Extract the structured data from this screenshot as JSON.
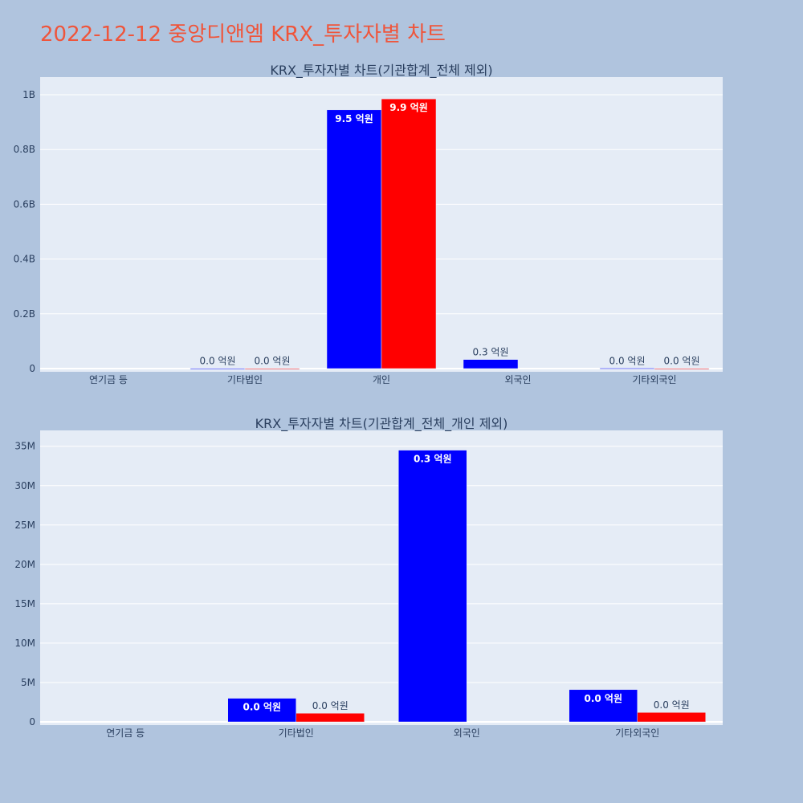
{
  "title": "2022-12-12 중앙디앤엠 KRX_투자자별 차트",
  "chart_data": [
    {
      "type": "bar",
      "title": "KRX_투자자별 차트(기관합계_전체 제외)",
      "categories": [
        "연기금 등",
        "기타법인",
        "개인",
        "외국인",
        "기타외국인"
      ],
      "ylim": [
        0,
        1050000000
      ],
      "yticks": [
        {
          "value": 0,
          "label": "0"
        },
        {
          "value": 200000000,
          "label": "0.2B"
        },
        {
          "value": 400000000,
          "label": "0.4B"
        },
        {
          "value": 600000000,
          "label": "0.6B"
        },
        {
          "value": 800000000,
          "label": "0.8B"
        },
        {
          "value": 1000000000,
          "label": "1B"
        }
      ],
      "grid": true,
      "series": [
        {
          "color": "#0000ff",
          "values": [
            0,
            1000000,
            945000000,
            33000000,
            1500000
          ],
          "labels": [
            "",
            "0.0 억원",
            "9.5 억원",
            "0.3 억원",
            "0.0 억원"
          ]
        },
        {
          "color": "#ff0000",
          "values": [
            0,
            800000,
            985000000,
            0,
            800000
          ],
          "labels": [
            "",
            "0.0 억원",
            "9.9 억원",
            "",
            "0.0 억원"
          ]
        }
      ]
    },
    {
      "type": "bar",
      "title": "KRX_투자자별 차트(기관합계_전체_개인 제외)",
      "categories": [
        "연기금 등",
        "기타법인",
        "외국인",
        "기타외국인"
      ],
      "ylim": [
        0,
        36500000
      ],
      "yticks": [
        {
          "value": 0,
          "label": "0"
        },
        {
          "value": 5000000,
          "label": "5M"
        },
        {
          "value": 10000000,
          "label": "10M"
        },
        {
          "value": 15000000,
          "label": "15M"
        },
        {
          "value": 20000000,
          "label": "20M"
        },
        {
          "value": 25000000,
          "label": "25M"
        },
        {
          "value": 30000000,
          "label": "30M"
        },
        {
          "value": 35000000,
          "label": "35M"
        }
      ],
      "grid": true,
      "series": [
        {
          "color": "#0000ff",
          "values": [
            0,
            3000000,
            34500000,
            4100000
          ],
          "labels": [
            "",
            "0.0 억원",
            "0.3 억원",
            "0.0 억원"
          ]
        },
        {
          "color": "#ff0000",
          "values": [
            0,
            1100000,
            0,
            1200000
          ],
          "labels": [
            "",
            "0.0 억원",
            "",
            "0.0 억원"
          ]
        }
      ]
    }
  ]
}
